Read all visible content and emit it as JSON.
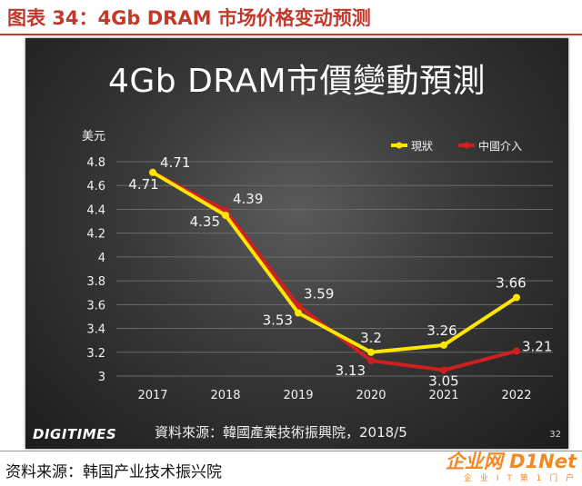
{
  "figure": {
    "title": "图表 34：4Gb DRAM 市场价格变动预测",
    "source_footer": "资料来源：韩国产业技术振兴院"
  },
  "slide": {
    "title": "4Gb DRAM市價變動預測",
    "logo": "DIGITIMES",
    "source_note": "資料來源：韓國產業技術振興院，2018/5",
    "page_number": "32"
  },
  "watermark": {
    "main": "企业网 D1Net",
    "sub": "企 业 I T 第 1 门 户"
  },
  "colors": {
    "series_current": "#ffe600",
    "series_china": "#d11f1f",
    "title_red": "#c0392b",
    "grid": "#6a6a6a"
  },
  "chart_data": {
    "type": "line",
    "title": "4Gb DRAM市價變動預測",
    "ylabel": "美元",
    "xlabel": "",
    "ylim": [
      3,
      4.8
    ],
    "yticks": [
      3,
      3.2,
      3.4,
      3.6,
      3.8,
      4,
      4.2,
      4.4,
      4.6,
      4.8
    ],
    "ytick_labels": [
      "3",
      "3.2",
      "3.4",
      "3.6",
      "3.8",
      "4",
      "4.2",
      "4.4",
      "4.6",
      "4.8"
    ],
    "categories": [
      "2017",
      "2018",
      "2019",
      "2020",
      "2021",
      "2022"
    ],
    "grid": true,
    "legend_position": "top-right",
    "series": [
      {
        "name": "現狀",
        "color": "#ffe600",
        "values": [
          4.71,
          4.35,
          3.53,
          3.2,
          3.26,
          3.66
        ],
        "labels": [
          "4.71",
          "4.35",
          "3.53",
          "3.2",
          "3.26",
          "3.66"
        ]
      },
      {
        "name": "中國介入",
        "color": "#d11f1f",
        "values": [
          4.71,
          4.39,
          3.59,
          3.13,
          3.05,
          3.21
        ],
        "labels": [
          "4.71",
          "4.39",
          "3.59",
          "3.13",
          "3.05",
          "3.21"
        ]
      }
    ]
  }
}
